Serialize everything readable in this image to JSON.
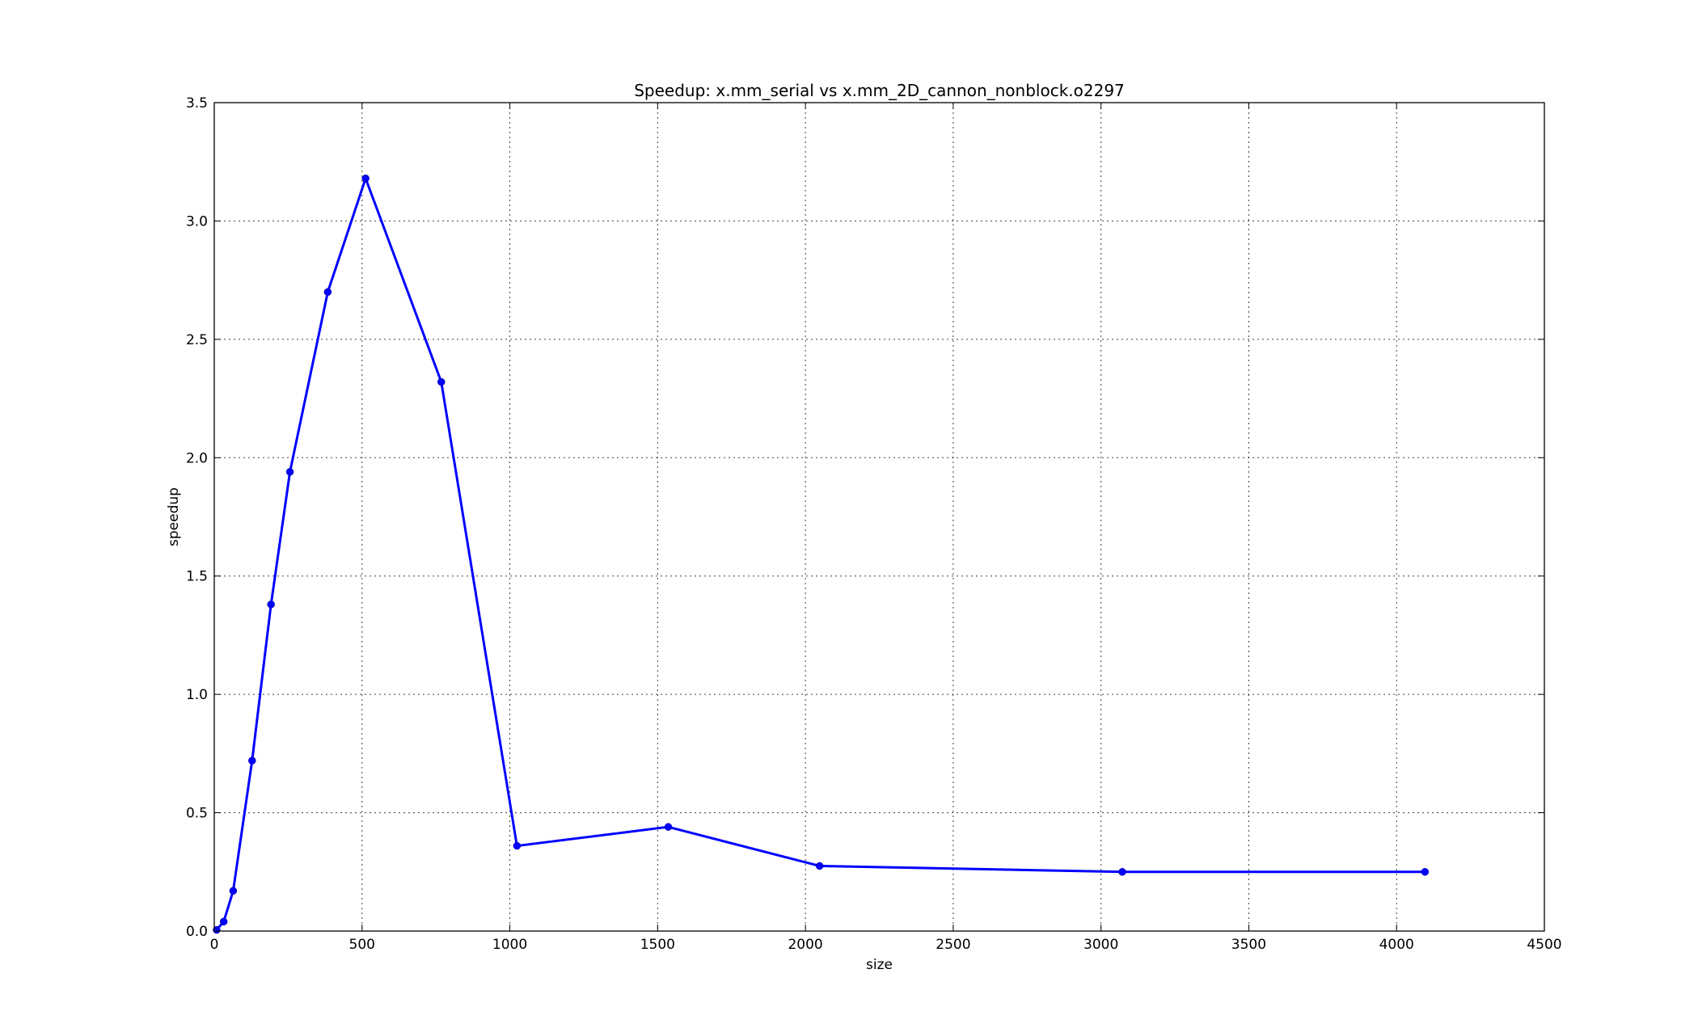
{
  "chart_data": {
    "type": "line",
    "title": "Speedup: x.mm_serial vs x.mm_2D_cannon_nonblock.o2297",
    "xlabel": "size",
    "ylabel": "speedup",
    "xlim": [
      0,
      4500
    ],
    "ylim": [
      0,
      3.5
    ],
    "xticks": [
      0,
      500,
      1000,
      1500,
      2000,
      2500,
      3000,
      3500,
      4000,
      4500
    ],
    "yticks": [
      0.0,
      0.5,
      1.0,
      1.5,
      2.0,
      2.5,
      3.0,
      3.5
    ],
    "xtick_labels": [
      "0",
      "500",
      "1000",
      "1500",
      "2000",
      "2500",
      "3000",
      "3500",
      "4000",
      "4500"
    ],
    "ytick_labels": [
      "0.0",
      "0.5",
      "1.0",
      "1.5",
      "2.0",
      "2.5",
      "3.0",
      "3.5"
    ],
    "grid": true,
    "series": [
      {
        "color": "#0000ff",
        "marker": "circle",
        "x": [
          8,
          32,
          64,
          128,
          192,
          256,
          384,
          512,
          768,
          1024,
          1536,
          2048,
          3072,
          4096
        ],
        "y": [
          0.005,
          0.04,
          0.17,
          0.72,
          1.38,
          1.94,
          2.7,
          3.18,
          2.32,
          0.36,
          0.44,
          0.275,
          0.25,
          0.25
        ]
      }
    ]
  }
}
